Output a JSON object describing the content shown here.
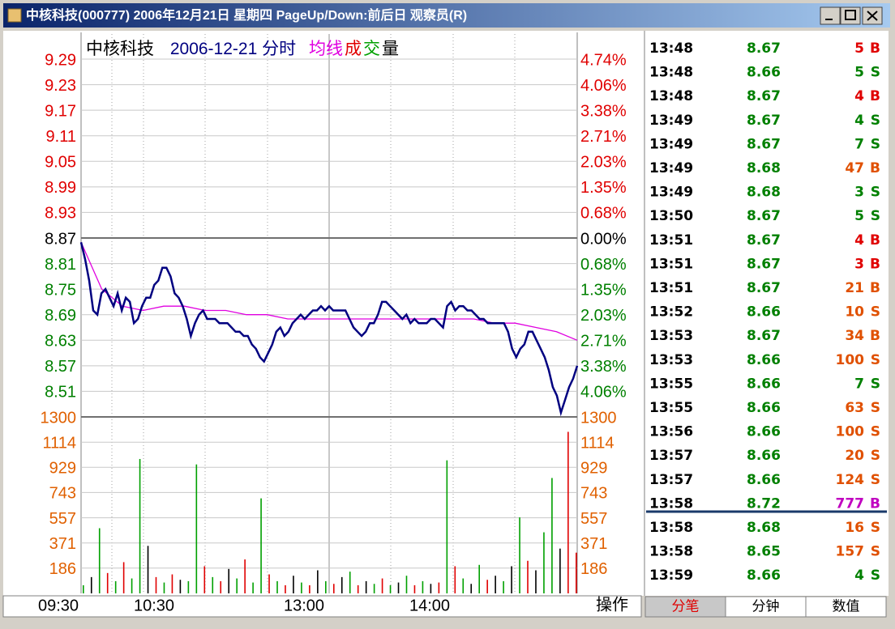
{
  "window": {
    "title": "中核科技(000777) 2006年12月21日 星期四 PageUp/Down:前后日 观察员(R)"
  },
  "price_chart": {
    "name": "中核科技",
    "date_label": "2006-12-21 分时",
    "legend": [
      {
        "text": "均线",
        "color": "#e000e0"
      },
      {
        "text": "成",
        "color": "#e00000"
      },
      {
        "text": "交",
        "color": "#00a000"
      },
      {
        "text": "量",
        "color": "#000000"
      }
    ],
    "ylim": [
      8.45,
      9.29
    ],
    "yticks": [
      9.29,
      9.23,
      9.17,
      9.11,
      9.05,
      8.99,
      8.93,
      8.87,
      8.81,
      8.75,
      8.69,
      8.63,
      8.57,
      8.51
    ],
    "pct_ticks": [
      {
        "value": 4.74,
        "label": "4.74%"
      },
      {
        "value": 4.06,
        "label": "4.06%"
      },
      {
        "value": 3.38,
        "label": "3.38%"
      },
      {
        "value": 2.71,
        "label": "2.71%"
      },
      {
        "value": 2.03,
        "label": "2.03%"
      },
      {
        "value": 1.35,
        "label": "1.35%"
      },
      {
        "value": 0.68,
        "label": "0.68%"
      },
      {
        "value": 0.0,
        "label": "0.00%"
      },
      {
        "value": -0.68,
        "label": "0.68%"
      },
      {
        "value": -1.35,
        "label": "1.35%"
      },
      {
        "value": -2.03,
        "label": "2.03%"
      },
      {
        "value": -2.71,
        "label": "2.71%"
      },
      {
        "value": -3.38,
        "label": "3.38%"
      },
      {
        "value": -4.06,
        "label": "4.06%"
      }
    ],
    "up_color": "#e00000",
    "down_color": "#008000",
    "flat_color": "#000000",
    "price_color": "#000080",
    "average_color": "#e000e0",
    "prices": [
      8.86,
      8.82,
      8.77,
      8.7,
      8.69,
      8.74,
      8.75,
      8.73,
      8.71,
      8.74,
      8.7,
      8.73,
      8.72,
      8.67,
      8.68,
      8.71,
      8.73,
      8.73,
      8.76,
      8.77,
      8.8,
      8.8,
      8.78,
      8.74,
      8.73,
      8.71,
      8.68,
      8.64,
      8.67,
      8.69,
      8.7,
      8.68,
      8.68,
      8.68,
      8.67,
      8.67,
      8.67,
      8.66,
      8.65,
      8.65,
      8.64,
      8.64,
      8.62,
      8.61,
      8.59,
      8.58,
      8.6,
      8.62,
      8.65,
      8.66,
      8.64,
      8.65,
      8.67,
      8.68,
      8.69,
      8.68,
      8.69,
      8.7,
      8.7,
      8.71,
      8.7,
      8.71,
      8.7,
      8.7,
      8.7,
      8.7,
      8.68,
      8.66,
      8.65,
      8.64,
      8.65,
      8.67,
      8.67,
      8.69,
      8.72,
      8.72,
      8.71,
      8.7,
      8.69,
      8.68,
      8.69,
      8.67,
      8.68,
      8.67,
      8.67,
      8.67,
      8.68,
      8.68,
      8.67,
      8.66,
      8.71,
      8.72,
      8.7,
      8.71,
      8.71,
      8.7,
      8.7,
      8.69,
      8.68,
      8.68,
      8.67,
      8.67,
      8.67,
      8.67,
      8.67,
      8.65,
      8.61,
      8.59,
      8.61,
      8.62,
      8.65,
      8.65,
      8.63,
      8.61,
      8.59,
      8.56,
      8.52,
      8.5,
      8.46,
      8.49,
      8.52,
      8.54,
      8.57
    ],
    "average": [
      8.86,
      8.75,
      8.71,
      8.7,
      8.71,
      8.71,
      8.7,
      8.7,
      8.69,
      8.69,
      8.68,
      8.68,
      8.68,
      8.68,
      8.68,
      8.68,
      8.68,
      8.68,
      8.68,
      8.68,
      8.67,
      8.67,
      8.66,
      8.65,
      8.63
    ]
  },
  "volume_chart": {
    "ylim": [
      0,
      1300
    ],
    "yticks": [
      1300,
      1114,
      929,
      743,
      557,
      371,
      186
    ],
    "tick_color": "#e06000",
    "values": [
      60,
      120,
      480,
      150,
      90,
      230,
      110,
      990,
      350,
      120,
      80,
      140,
      100,
      90,
      950,
      200,
      120,
      90,
      180,
      110,
      250,
      80,
      700,
      140,
      90,
      60,
      130,
      80,
      60,
      170,
      90,
      70,
      120,
      160,
      60,
      90,
      70,
      110,
      60,
      80,
      130,
      60,
      90,
      70,
      80,
      980,
      200,
      110,
      70,
      210,
      100,
      130,
      90,
      200,
      560,
      240,
      170,
      450,
      850,
      330,
      1190,
      300
    ],
    "colors": [
      "#00a000",
      "#000000",
      "#00a000",
      "#e00000",
      "#00a000",
      "#e00000",
      "#00a000",
      "#00a000",
      "#000000",
      "#e00000",
      "#00a000",
      "#e00000",
      "#000000",
      "#00a000",
      "#00a000",
      "#e00000",
      "#00a000",
      "#e00000",
      "#000000",
      "#00a000",
      "#e00000",
      "#00a000",
      "#00a000",
      "#e00000",
      "#00a000",
      "#e00000",
      "#000000",
      "#00a000",
      "#e00000",
      "#000000",
      "#00a000",
      "#e00000",
      "#000000",
      "#00a000",
      "#e00000",
      "#000000",
      "#00a000",
      "#e00000",
      "#00a000",
      "#000000",
      "#00a000",
      "#e00000",
      "#00a000",
      "#000000",
      "#e00000",
      "#00a000",
      "#e00000",
      "#00a000",
      "#000000",
      "#00a000",
      "#e00000",
      "#000000",
      "#00a000",
      "#000000",
      "#00a000",
      "#e00000",
      "#000000",
      "#00a000",
      "#00a000",
      "#000000",
      "#e00000",
      "#e00000"
    ]
  },
  "x_axis": {
    "labels": [
      "09:30",
      "10:30",
      "13:00",
      "14:00"
    ]
  },
  "operate_label": "操作",
  "tick_list": {
    "rows": [
      {
        "time": "13:48",
        "price": 8.67,
        "volume": 5,
        "side": "B",
        "color": "#e00000"
      },
      {
        "time": "13:48",
        "price": 8.66,
        "volume": 5,
        "side": "S",
        "color": "#008000"
      },
      {
        "time": "13:48",
        "price": 8.67,
        "volume": 4,
        "side": "B",
        "color": "#e00000"
      },
      {
        "time": "13:49",
        "price": 8.67,
        "volume": 4,
        "side": "S",
        "color": "#008000"
      },
      {
        "time": "13:49",
        "price": 8.67,
        "volume": 7,
        "side": "S",
        "color": "#008000"
      },
      {
        "time": "13:49",
        "price": 8.68,
        "volume": 47,
        "side": "B",
        "color": "#e05000"
      },
      {
        "time": "13:49",
        "price": 8.68,
        "volume": 3,
        "side": "S",
        "color": "#008000"
      },
      {
        "time": "13:50",
        "price": 8.67,
        "volume": 5,
        "side": "S",
        "color": "#008000"
      },
      {
        "time": "13:51",
        "price": 8.67,
        "volume": 4,
        "side": "B",
        "color": "#e00000"
      },
      {
        "time": "13:51",
        "price": 8.67,
        "volume": 3,
        "side": "B",
        "color": "#e00000"
      },
      {
        "time": "13:51",
        "price": 8.67,
        "volume": 21,
        "side": "B",
        "color": "#e05000"
      },
      {
        "time": "13:52",
        "price": 8.66,
        "volume": 10,
        "side": "S",
        "color": "#e05000"
      },
      {
        "time": "13:53",
        "price": 8.67,
        "volume": 34,
        "side": "B",
        "color": "#e05000"
      },
      {
        "time": "13:53",
        "price": 8.66,
        "volume": 100,
        "side": "S",
        "color": "#e05000"
      },
      {
        "time": "13:55",
        "price": 8.66,
        "volume": 7,
        "side": "S",
        "color": "#008000"
      },
      {
        "time": "13:55",
        "price": 8.66,
        "volume": 63,
        "side": "S",
        "color": "#e05000"
      },
      {
        "time": "13:56",
        "price": 8.66,
        "volume": 100,
        "side": "S",
        "color": "#e05000"
      },
      {
        "time": "13:57",
        "price": 8.66,
        "volume": 20,
        "side": "S",
        "color": "#e05000"
      },
      {
        "time": "13:57",
        "price": 8.66,
        "volume": 124,
        "side": "S",
        "color": "#e05000"
      },
      {
        "time": "13:58",
        "price": 8.72,
        "volume": 777,
        "side": "B",
        "color": "#c000c0"
      },
      {
        "time": "13:58",
        "price": 8.68,
        "volume": 16,
        "side": "S",
        "color": "#e05000"
      },
      {
        "time": "13:58",
        "price": 8.65,
        "volume": 157,
        "side": "S",
        "color": "#e05000"
      },
      {
        "time": "13:59",
        "price": 8.66,
        "volume": 4,
        "side": "S",
        "color": "#008000"
      }
    ],
    "tabs": [
      "分笔",
      "分钟",
      "数值"
    ],
    "active_tab": 0
  }
}
